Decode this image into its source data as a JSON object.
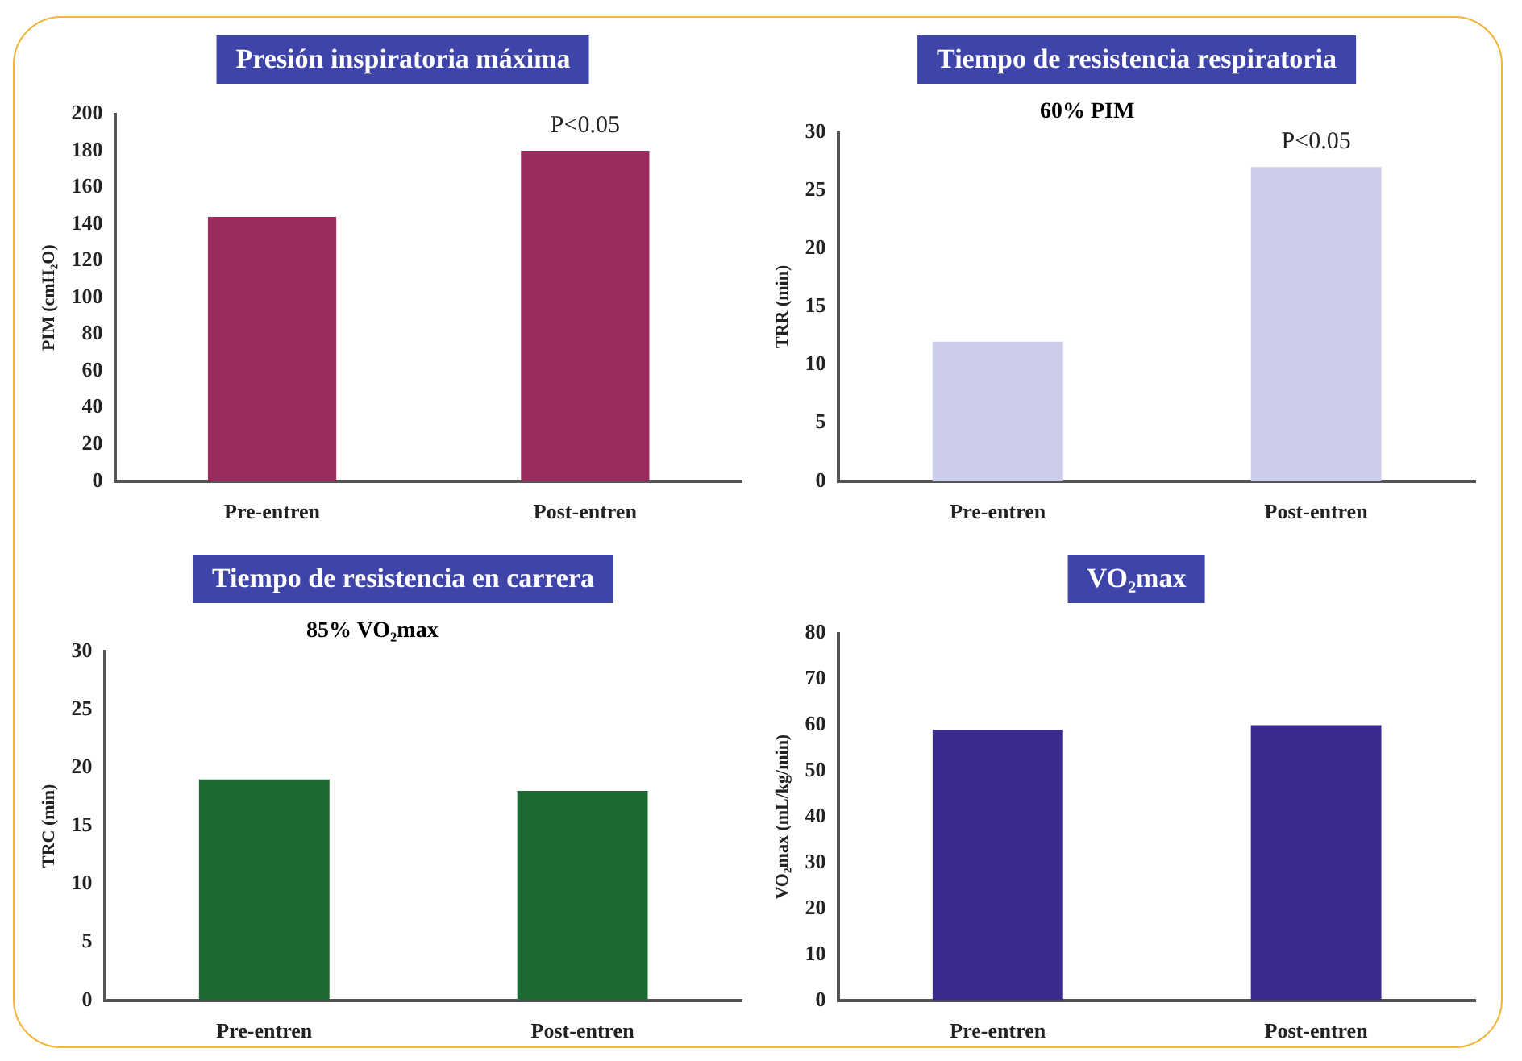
{
  "chart_data": [
    {
      "type": "bar",
      "title": "Presión inspiratoria máxima",
      "ylabel": "PIM (cmH₂O)",
      "categories": [
        "Pre-entren",
        "Post-entren"
      ],
      "values": [
        144,
        180
      ],
      "color": "#9c2b5f",
      "ylim": [
        0,
        200
      ],
      "yticks": [
        0,
        20,
        40,
        60,
        80,
        100,
        120,
        140,
        160,
        180,
        200
      ],
      "annotations": [
        {
          "text": "P<0.05",
          "x": "Post-entren",
          "y": 180
        }
      ]
    },
    {
      "type": "bar",
      "title": "Tiempo de resistencia respiratoria",
      "subtitle": "60% PIM",
      "ylabel": "TRR (min)",
      "categories": [
        "Pre-entren",
        "Post-entren"
      ],
      "values": [
        12,
        27
      ],
      "color": "#cbcde8",
      "ylim": [
        0,
        30
      ],
      "yticks": [
        0,
        5,
        10,
        15,
        20,
        25,
        30
      ],
      "annotations": [
        {
          "text": "P<0.05",
          "x": "Post-entren",
          "y": 27
        }
      ]
    },
    {
      "type": "bar",
      "title": "Tiempo de resistencia en carrera",
      "subtitle": "85% VO₂max",
      "ylabel": "TRC (min)",
      "categories": [
        "Pre-entren",
        "Post-entren"
      ],
      "values": [
        19,
        18
      ],
      "color": "#1d6a35",
      "ylim": [
        0,
        30
      ],
      "yticks": [
        0,
        5,
        10,
        15,
        20,
        25,
        30
      ]
    },
    {
      "type": "bar",
      "title": "VO₂max",
      "ylabel": "VO₂max (mL/kg/min)",
      "categories": [
        "Pre-entren",
        "Post-entren"
      ],
      "values": [
        59,
        60
      ],
      "color": "#3c2a8c",
      "ylim": [
        0,
        80
      ],
      "yticks": [
        0,
        10,
        20,
        30,
        40,
        50,
        60,
        70,
        80
      ]
    }
  ]
}
